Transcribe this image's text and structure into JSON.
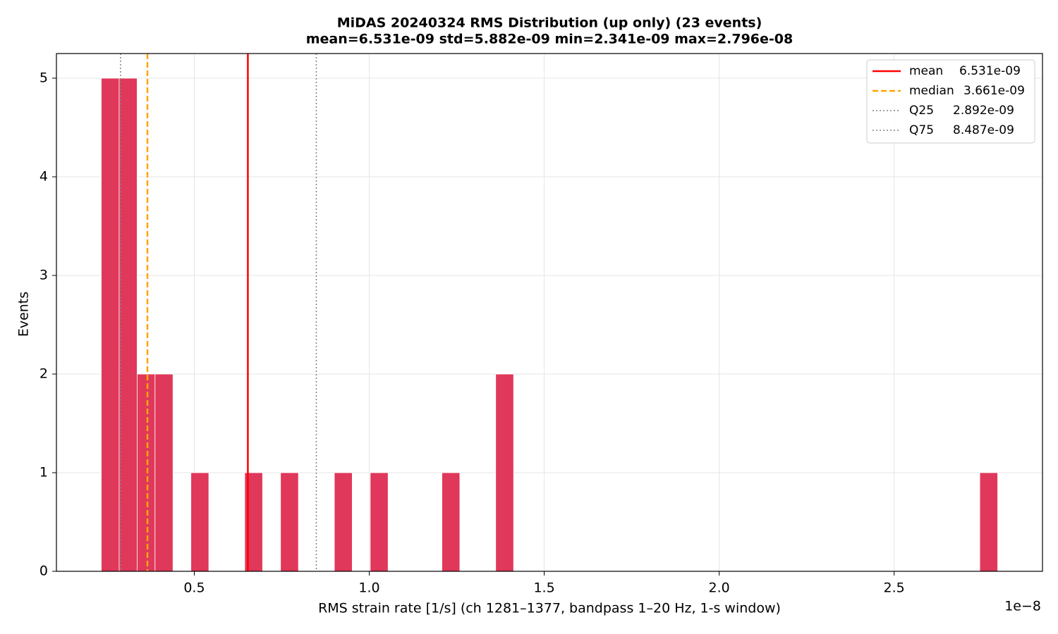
{
  "chart_data": {
    "type": "histogram",
    "title": "MiDAS 20240324  RMS Distribution  (up only)  (23 events)",
    "subtitle": "mean=6.531e-09  std=5.882e-09  min=2.341e-09  max=2.796e-08",
    "x_label": "RMS strain rate [1/s]  (ch 1281–1377, bandpass 1–20 Hz, 1-s window)",
    "y_label": "Events",
    "x_offset_label": "1e−8",
    "color": "#e0385a",
    "bins": [
      2.341e-09,
      2.853e-09,
      3.366e-09,
      3.878e-09,
      4.391e-09,
      4.903e-09,
      5.415e-09,
      5.928e-09,
      6.44e-09,
      6.952e-09,
      7.465e-09,
      7.977e-09,
      8.49e-09,
      9.002e-09,
      9.514e-09,
      1.0027e-08,
      1.0539e-08,
      1.1051e-08,
      1.1564e-08,
      1.2076e-08,
      1.2589e-08,
      1.3101e-08,
      1.3613e-08,
      1.4126e-08,
      1.4638e-08,
      1.5151e-08,
      1.5663e-08,
      1.6175e-08,
      1.6688e-08,
      1.72e-08,
      1.7712e-08,
      1.8225e-08,
      1.8737e-08,
      1.925e-08,
      1.9762e-08,
      2.0274e-08,
      2.0787e-08,
      2.1299e-08,
      2.1811e-08,
      2.2324e-08,
      2.2836e-08,
      2.3349e-08,
      2.3861e-08,
      2.4373e-08,
      2.4886e-08,
      2.5398e-08,
      2.591e-08,
      2.6423e-08,
      2.6935e-08,
      2.7448e-08,
      2.796e-08
    ],
    "values": [
      5,
      5,
      2,
      2,
      0,
      1,
      0,
      0,
      1,
      0,
      1,
      0,
      0,
      1,
      0,
      1,
      0,
      0,
      0,
      1,
      0,
      0,
      2,
      0,
      0,
      0,
      0,
      0,
      0,
      0,
      0,
      0,
      0,
      0,
      0,
      0,
      0,
      0,
      0,
      0,
      0,
      0,
      0,
      0,
      0,
      0,
      0,
      0,
      0,
      1
    ],
    "lines": [
      {
        "name": "mean",
        "value": 6.531e-09,
        "value_label": "6.531e-09",
        "color": "#ff0000",
        "style": "solid"
      },
      {
        "name": "median",
        "value": 3.661e-09,
        "value_label": "3.661e-09",
        "color": "#ffa500",
        "style": "dashed"
      },
      {
        "name": "Q25",
        "value": 2.892e-09,
        "value_label": "2.892e-09",
        "color": "#808080",
        "style": "dotted"
      },
      {
        "name": "Q75",
        "value": 8.487e-09,
        "value_label": "8.487e-09",
        "color": "#808080",
        "style": "dotted"
      }
    ],
    "xlim": [
      1.06e-09,
      2.924e-08
    ],
    "xticks": [
      {
        "value": 5e-09,
        "label": "0.5"
      },
      {
        "value": 1e-08,
        "label": "1.0"
      },
      {
        "value": 1.5e-08,
        "label": "1.5"
      },
      {
        "value": 2e-08,
        "label": "2.0"
      },
      {
        "value": 2.5e-08,
        "label": "2.5"
      }
    ],
    "ylim": [
      0,
      5.25
    ],
    "yticks": [
      0,
      1,
      2,
      3,
      4,
      5
    ],
    "grid": true,
    "legend": "upper right"
  }
}
